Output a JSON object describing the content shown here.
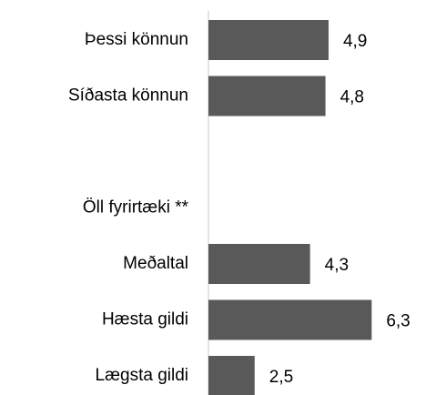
{
  "chart_data": {
    "type": "hbar",
    "categories": [
      "Þessi könnun",
      "Síðasta könnun",
      null,
      "Öll fyrirtæki **",
      "Meðaltal",
      "Hæsta gildi",
      "Lægsta gildi"
    ],
    "values": [
      4.9,
      4.8,
      null,
      null,
      4.3,
      6.3,
      2.5
    ],
    "value_labels": [
      "4,9",
      "4,8",
      null,
      null,
      "4,3",
      "6,3",
      "2,5"
    ],
    "color": "#595959",
    "xlim": [
      1,
      7
    ]
  }
}
